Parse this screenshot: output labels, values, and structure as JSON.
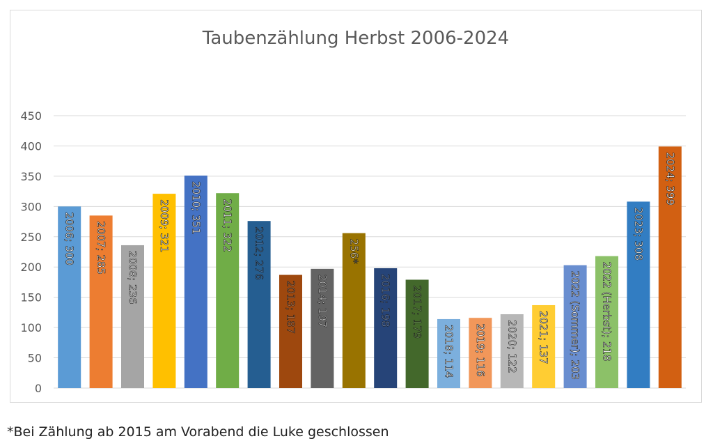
{
  "chart_data": {
    "type": "bar",
    "title": "Taubenzählung Herbst 2006-2024",
    "xlabel": "",
    "ylabel": "",
    "ylim": [
      0,
      450
    ],
    "yticks": [
      0,
      50,
      100,
      150,
      200,
      250,
      300,
      350,
      400,
      450
    ],
    "grid": true,
    "legend": "none",
    "bars": [
      {
        "label": "2006; 300",
        "value": 300,
        "color": "#5b9bd5",
        "label_color": "#ffffff"
      },
      {
        "label": "2007; 285",
        "value": 285,
        "color": "#ed7d31",
        "label_color": "#ffffff"
      },
      {
        "label": "2008; 236",
        "value": 236,
        "color": "#a5a5a5",
        "label_color": "#ffffff"
      },
      {
        "label": "2009; 321",
        "value": 321,
        "color": "#ffc000",
        "label_color": "#ffffff"
      },
      {
        "label": "2010; 351",
        "value": 351,
        "color": "#4472c4",
        "label_color": "#ffffff"
      },
      {
        "label": "2011; 322",
        "value": 322,
        "color": "#70ad47",
        "label_color": "#ffffff"
      },
      {
        "label": "2012; 276",
        "value": 276,
        "color": "#255e91",
        "label_color": "#4a7fb8"
      },
      {
        "label": "2013; 187",
        "value": 187,
        "color": "#9e480e",
        "label_color": "#c0784a"
      },
      {
        "label": "2014; 197",
        "value": 197,
        "color": "#636363",
        "label_color": "#e0e0e0"
      },
      {
        "label": "256*",
        "value": 256,
        "color": "#997300",
        "label_color": "#f5e3b0"
      },
      {
        "label": "2016; 198",
        "value": 198,
        "color": "#264478",
        "label_color": "#6f8bbd"
      },
      {
        "label": "2017; 179",
        "value": 179,
        "color": "#43682b",
        "label_color": "#6f9a55"
      },
      {
        "label": "2018; 114",
        "value": 114,
        "color": "#7cafdd",
        "label_color": "#ffffff"
      },
      {
        "label": "2019; 116",
        "value": 116,
        "color": "#f1975a",
        "label_color": "#ffffff"
      },
      {
        "label": "2020; 122",
        "value": 122,
        "color": "#b7b7b7",
        "label_color": "#ffffff"
      },
      {
        "label": "2021; 137",
        "value": 137,
        "color": "#ffcd33",
        "label_color": "#ffffff"
      },
      {
        "label": "2022 (Sommer); 203",
        "value": 203,
        "color": "#698ed0",
        "label_color": "#ffffff"
      },
      {
        "label": "2022 (Herbst); 218",
        "value": 218,
        "color": "#8cc168",
        "label_color": "#ffffff"
      },
      {
        "label": "2023; 308",
        "value": 308,
        "color": "#327dc2",
        "label_color": "#ffffff"
      },
      {
        "label": "2024; 399",
        "value": 399,
        "color": "#d26012",
        "label_color": "#ffffff"
      }
    ]
  },
  "colors": {
    "gridline": "#d9d9d9",
    "axis_text": "#595959",
    "title_text": "#595959",
    "label_stroke": "#1a1a1a"
  },
  "footnote": "*Bei Zählung ab 2015 am Vorabend die Luke geschlossen"
}
